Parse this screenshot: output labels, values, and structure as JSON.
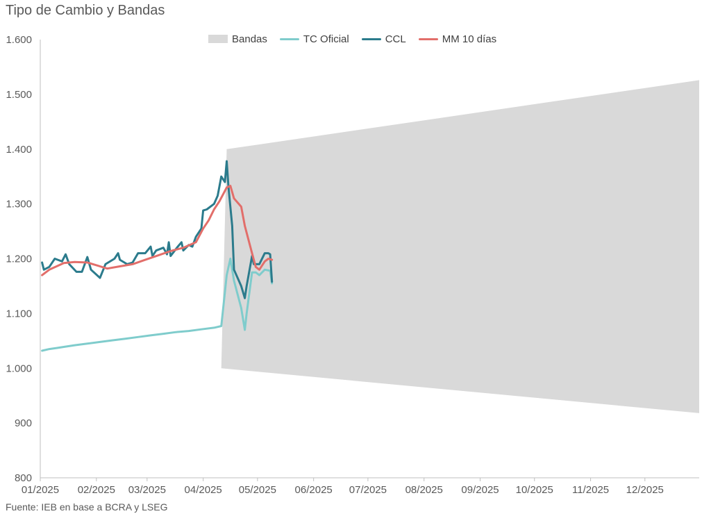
{
  "title": "Tipo de Cambio y Bandas",
  "source": "Fuente: IEB en base a BCRA y LSEG",
  "colors": {
    "bandas": "#d9d9d9",
    "tc_oficial": "#7fcccc",
    "ccl": "#2b7b8c",
    "mm10": "#e26e6a",
    "axis": "#bfbfbf",
    "text": "#595959"
  },
  "chart_data": {
    "type": "line",
    "title": "Tipo de Cambio y Bandas",
    "xlabel": "",
    "ylabel": "",
    "grid": false,
    "legend_position": "top",
    "ylim": [
      800,
      1600
    ],
    "y_ticks": [
      {
        "value": 800,
        "label": "800"
      },
      {
        "value": 900,
        "label": "900"
      },
      {
        "value": 1000,
        "label": "1.000"
      },
      {
        "value": 1100,
        "label": "1.100"
      },
      {
        "value": 1200,
        "label": "1.200"
      },
      {
        "value": 1300,
        "label": "1.300"
      },
      {
        "value": 1400,
        "label": "1.400"
      },
      {
        "value": 1500,
        "label": "1.500"
      },
      {
        "value": 1600,
        "label": "1.600"
      }
    ],
    "x_ticks": [
      {
        "date": "2025-01-01",
        "label": "01/2025"
      },
      {
        "date": "2025-02-01",
        "label": "02/2025"
      },
      {
        "date": "2025-03-01",
        "label": "03/2025"
      },
      {
        "date": "2025-04-01",
        "label": "04/2025"
      },
      {
        "date": "2025-05-01",
        "label": "05/2025"
      },
      {
        "date": "2025-06-01",
        "label": "06/2025"
      },
      {
        "date": "2025-07-01",
        "label": "07/2025"
      },
      {
        "date": "2025-08-01",
        "label": "08/2025"
      },
      {
        "date": "2025-09-01",
        "label": "09/2025"
      },
      {
        "date": "2025-10-01",
        "label": "10/2025"
      },
      {
        "date": "2025-11-01",
        "label": "11/2025"
      },
      {
        "date": "2025-12-01",
        "label": "12/2025"
      }
    ],
    "x_range": [
      "2025-01-01",
      "2025-12-31"
    ],
    "bands": {
      "name": "Bandas",
      "upper": [
        [
          "2025-04-14",
          1400
        ],
        [
          "2025-12-31",
          1526
        ]
      ],
      "lower": [
        [
          "2025-04-11",
          1000
        ],
        [
          "2025-12-31",
          918
        ]
      ]
    },
    "series": [
      {
        "name": "TC Oficial",
        "key": "tc_oficial",
        "points": [
          [
            "2025-01-02",
            1032
          ],
          [
            "2025-01-06",
            1035
          ],
          [
            "2025-01-10",
            1037
          ],
          [
            "2025-01-14",
            1039
          ],
          [
            "2025-01-20",
            1042
          ],
          [
            "2025-01-27",
            1045
          ],
          [
            "2025-02-03",
            1048
          ],
          [
            "2025-02-10",
            1051
          ],
          [
            "2025-02-17",
            1054
          ],
          [
            "2025-02-24",
            1057
          ],
          [
            "2025-03-03",
            1060
          ],
          [
            "2025-03-10",
            1063
          ],
          [
            "2025-03-17",
            1066
          ],
          [
            "2025-03-24",
            1068
          ],
          [
            "2025-03-31",
            1071
          ],
          [
            "2025-04-07",
            1074
          ],
          [
            "2025-04-11",
            1077
          ],
          [
            "2025-04-14",
            1170
          ],
          [
            "2025-04-16",
            1200
          ],
          [
            "2025-04-18",
            1160
          ],
          [
            "2025-04-22",
            1110
          ],
          [
            "2025-04-24",
            1070
          ],
          [
            "2025-04-25",
            1100
          ],
          [
            "2025-04-28",
            1175
          ],
          [
            "2025-04-30",
            1175
          ],
          [
            "2025-05-02",
            1170
          ],
          [
            "2025-05-05",
            1180
          ],
          [
            "2025-05-08",
            1178
          ],
          [
            "2025-05-09",
            1155
          ]
        ]
      },
      {
        "name": "CCL",
        "key": "ccl",
        "points": [
          [
            "2025-01-02",
            1193
          ],
          [
            "2025-01-03",
            1180
          ],
          [
            "2025-01-06",
            1185
          ],
          [
            "2025-01-09",
            1200
          ],
          [
            "2025-01-13",
            1195
          ],
          [
            "2025-01-15",
            1208
          ],
          [
            "2025-01-17",
            1190
          ],
          [
            "2025-01-21",
            1176
          ],
          [
            "2025-01-24",
            1176
          ],
          [
            "2025-01-27",
            1203
          ],
          [
            "2025-01-29",
            1180
          ],
          [
            "2025-02-03",
            1165
          ],
          [
            "2025-02-06",
            1190
          ],
          [
            "2025-02-11",
            1200
          ],
          [
            "2025-02-13",
            1210
          ],
          [
            "2025-02-14",
            1198
          ],
          [
            "2025-02-18",
            1190
          ],
          [
            "2025-02-21",
            1193
          ],
          [
            "2025-02-24",
            1210
          ],
          [
            "2025-02-28",
            1210
          ],
          [
            "2025-03-03",
            1222
          ],
          [
            "2025-03-04",
            1205
          ],
          [
            "2025-03-06",
            1215
          ],
          [
            "2025-03-10",
            1220
          ],
          [
            "2025-03-12",
            1208
          ],
          [
            "2025-03-13",
            1230
          ],
          [
            "2025-03-14",
            1205
          ],
          [
            "2025-03-18",
            1222
          ],
          [
            "2025-03-20",
            1230
          ],
          [
            "2025-03-21",
            1215
          ],
          [
            "2025-03-24",
            1225
          ],
          [
            "2025-03-26",
            1222
          ],
          [
            "2025-03-28",
            1240
          ],
          [
            "2025-03-31",
            1255
          ],
          [
            "2025-04-01",
            1288
          ],
          [
            "2025-04-03",
            1290
          ],
          [
            "2025-04-07",
            1300
          ],
          [
            "2025-04-09",
            1315
          ],
          [
            "2025-04-11",
            1350
          ],
          [
            "2025-04-13",
            1340
          ],
          [
            "2025-04-14",
            1378
          ],
          [
            "2025-04-15",
            1330
          ],
          [
            "2025-04-17",
            1260
          ],
          [
            "2025-04-18",
            1180
          ],
          [
            "2025-04-22",
            1150
          ],
          [
            "2025-04-24",
            1128
          ],
          [
            "2025-04-25",
            1150
          ],
          [
            "2025-04-28",
            1205
          ],
          [
            "2025-04-29",
            1190
          ],
          [
            "2025-05-02",
            1190
          ],
          [
            "2025-05-05",
            1210
          ],
          [
            "2025-05-07",
            1210
          ],
          [
            "2025-05-08",
            1208
          ],
          [
            "2025-05-09",
            1158
          ]
        ]
      },
      {
        "name": "MM 10 días",
        "key": "mm10",
        "points": [
          [
            "2025-01-02",
            1170
          ],
          [
            "2025-01-06",
            1180
          ],
          [
            "2025-01-10",
            1186
          ],
          [
            "2025-01-14",
            1192
          ],
          [
            "2025-01-20",
            1194
          ],
          [
            "2025-01-27",
            1193
          ],
          [
            "2025-02-03",
            1186
          ],
          [
            "2025-02-07",
            1182
          ],
          [
            "2025-02-14",
            1186
          ],
          [
            "2025-02-21",
            1190
          ],
          [
            "2025-02-28",
            1198
          ],
          [
            "2025-03-07",
            1206
          ],
          [
            "2025-03-14",
            1214
          ],
          [
            "2025-03-21",
            1220
          ],
          [
            "2025-03-28",
            1230
          ],
          [
            "2025-04-01",
            1255
          ],
          [
            "2025-04-04",
            1270
          ],
          [
            "2025-04-07",
            1290
          ],
          [
            "2025-04-10",
            1305
          ],
          [
            "2025-04-14",
            1330
          ],
          [
            "2025-04-16",
            1333
          ],
          [
            "2025-04-18",
            1310
          ],
          [
            "2025-04-22",
            1295
          ],
          [
            "2025-04-24",
            1260
          ],
          [
            "2025-04-28",
            1210
          ],
          [
            "2025-04-30",
            1185
          ],
          [
            "2025-05-02",
            1180
          ],
          [
            "2025-05-05",
            1195
          ],
          [
            "2025-05-07",
            1200
          ],
          [
            "2025-05-09",
            1198
          ]
        ]
      }
    ]
  }
}
